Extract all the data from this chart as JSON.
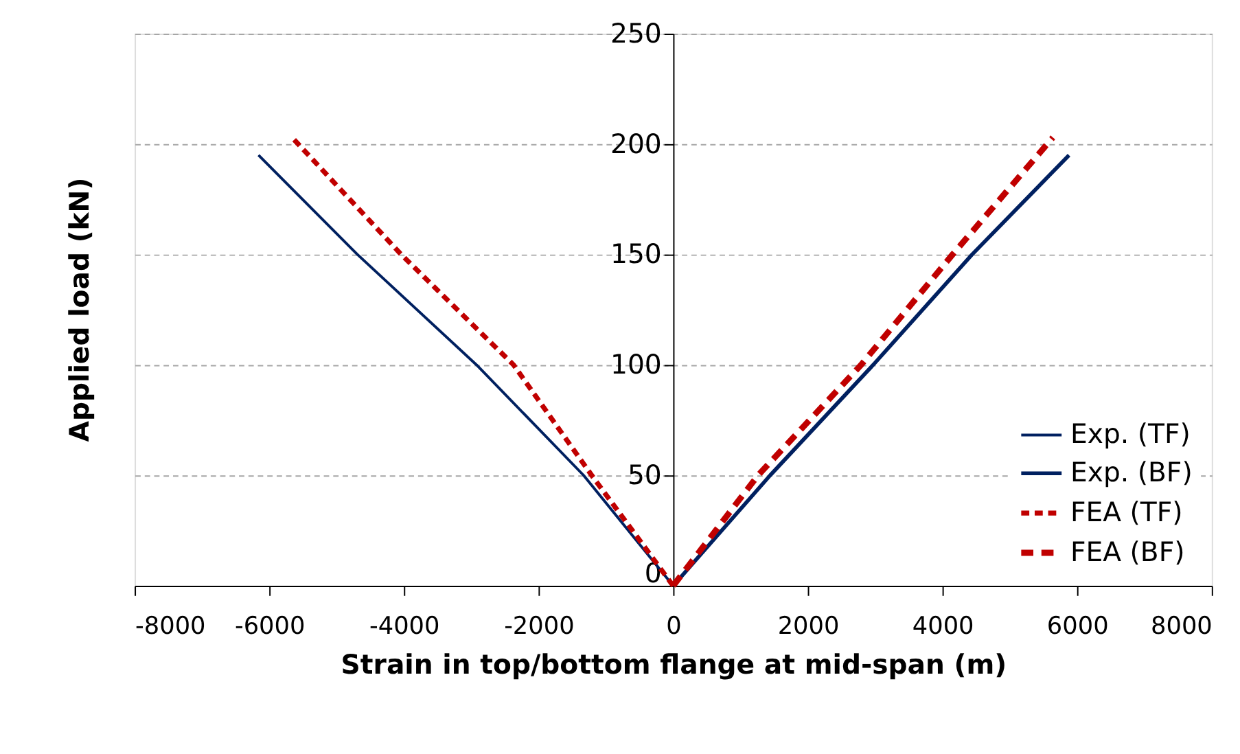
{
  "chart_data": {
    "type": "line",
    "xlabel": "Strain in top/bottom flange at mid-span (m)",
    "ylabel": "Applied load (kN)",
    "xlim": [
      -8000,
      8000
    ],
    "xticks": [
      -8000,
      -6000,
      -4000,
      -2000,
      0,
      2000,
      4000,
      6000,
      8000
    ],
    "ylim": [
      0,
      250
    ],
    "yticks": [
      0,
      50,
      100,
      150,
      200,
      250
    ],
    "grid": "y",
    "legend": "bottom right",
    "marker": "none",
    "series": [
      {
        "name": "Exp. (TF)",
        "color": "#002060",
        "line_style": "solid",
        "x": [
          0,
          -1330,
          -2920,
          -4690,
          -6160
        ],
        "values": [
          0,
          50,
          100,
          150,
          195
        ]
      },
      {
        "name": "Exp. (BF)",
        "color": "#002060",
        "line_style": "solid",
        "x": [
          0,
          1440,
          2970,
          4440,
          5880
        ],
        "values": [
          0,
          50,
          100,
          150,
          195
        ]
      },
      {
        "name": "FEA (TF)",
        "color": "#c00000",
        "line_style": "dashed",
        "x": [
          0,
          -1210,
          -2370,
          -4040,
          -5630
        ],
        "values": [
          0,
          50,
          100,
          150,
          202
        ]
      },
      {
        "name": "FEA (BF)",
        "color": "#c00000",
        "line_style": "dashed",
        "x": [
          0,
          1260,
          2790,
          4150,
          5640
        ],
        "values": [
          0,
          50,
          100,
          150,
          203
        ]
      }
    ]
  }
}
